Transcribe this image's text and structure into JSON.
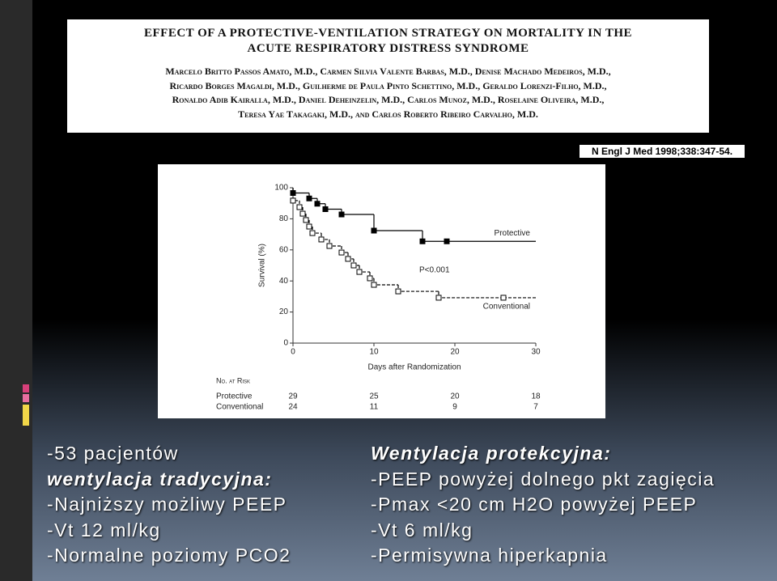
{
  "header": {
    "title_lines": [
      "EFFECT OF A PROTECTIVE-VENTILATION STRATEGY ON MORTALITY IN THE",
      "ACUTE RESPIRATORY DISTRESS SYNDROME"
    ],
    "authors": [
      "Marcelo Britto Passos Amato, M.D., Carmen Silvia Valente Barbas, M.D., Denise Machado Medeiros, M.D.,",
      "Ricardo Borges Magaldi, M.D., Guilherme de Paula Pinto Schettino, M.D., Geraldo Lorenzi-Filho, M.D.,",
      "Ronaldo Adib Kairalla, M.D., Daniel Deheinzelin, M.D., Carlos Munoz, M.D., Roselaine Oliveira, M.D.,",
      "Teresa Yae Takagaki, M.D., and Carlos Roberto Ribeiro Carvalho, M.D."
    ],
    "citation": "N Engl J Med 1998;338:347-54."
  },
  "chart_data": {
    "type": "step",
    "ylabel": "Survival (%)",
    "xlabel": "Days after Randomization",
    "annotation": "P<0.001",
    "xlim": [
      0,
      30
    ],
    "ylim": [
      0,
      100
    ],
    "xticks": [
      0,
      10,
      20,
      30
    ],
    "yticks": [
      0,
      20,
      40,
      60,
      80,
      100
    ],
    "series": [
      {
        "name": "Protective",
        "color": "#000000",
        "x": [
          0,
          2,
          3,
          4,
          6,
          10,
          16,
          19,
          30
        ],
        "values": [
          100,
          96.6,
          93.1,
          89.7,
          86.2,
          82.8,
          72.4,
          65.5,
          65.5
        ]
      },
      {
        "name": "Conventional",
        "color": "#ffffff",
        "x": [
          0,
          0.8,
          1.2,
          1.6,
          2,
          2.4,
          3.5,
          4.5,
          6,
          6.8,
          7.5,
          8.2,
          9.5,
          10,
          13,
          18,
          26,
          30
        ],
        "values": [
          100,
          91.7,
          87.5,
          83.3,
          79.2,
          75,
          70.8,
          66.7,
          62.5,
          58.3,
          54.2,
          50,
          45.8,
          41.7,
          37.5,
          33.3,
          29.2,
          29.2
        ]
      }
    ],
    "at_risk": {
      "title": "No. at Risk",
      "rows": [
        {
          "name": "Protective",
          "values": [
            29,
            25,
            20,
            18
          ]
        },
        {
          "name": "Conventional",
          "values": [
            24,
            11,
            9,
            7
          ]
        }
      ]
    }
  },
  "left_text": [
    "-53 pacjentów",
    "wentylacja tradycyjna:",
    "-Najniższy możliwy PEEP",
    "-Vt 12 ml/kg",
    "-Normalne poziomy PCO2"
  ],
  "right_text": [
    "Wentylacja protekcyjna:",
    "-PEEP powyżej dolnego pkt zagięcia",
    "-Pmax <20 cm H2O powyżej PEEP",
    "-Vt 6 ml/kg",
    "-Permisywna hiperkapnia"
  ]
}
